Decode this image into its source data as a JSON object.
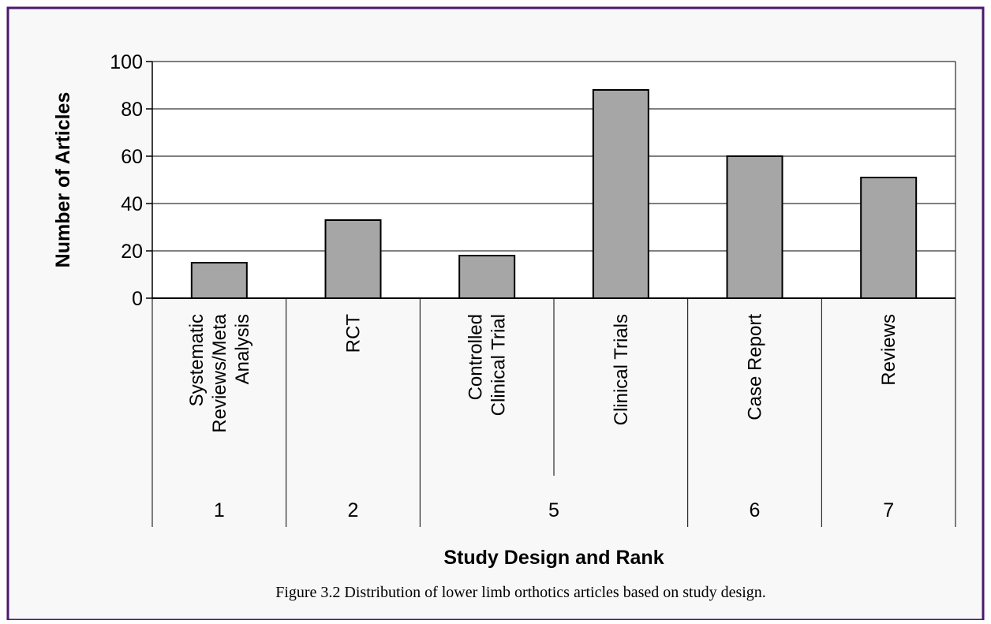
{
  "chart_data": {
    "type": "bar",
    "categories": [
      {
        "lines": [
          "Systematic",
          "Reviews/Meta",
          "Analysis"
        ],
        "rank": "1",
        "value": 15
      },
      {
        "lines": [
          "RCT"
        ],
        "rank": "2",
        "value": 33
      },
      {
        "lines": [
          "Controlled",
          "Clinical Trial"
        ],
        "rank": "5",
        "value": 18
      },
      {
        "lines": [
          "Clinical Trials"
        ],
        "rank": "5",
        "value": 88
      },
      {
        "lines": [
          "Case Report"
        ],
        "rank": "6",
        "value": 60
      },
      {
        "lines": [
          "Reviews"
        ],
        "rank": "7",
        "value": 51
      }
    ],
    "rank_groups": [
      {
        "label": "1",
        "from": 0,
        "to": 0
      },
      {
        "label": "2",
        "from": 1,
        "to": 1
      },
      {
        "label": "5",
        "from": 2,
        "to": 3
      },
      {
        "label": "6",
        "from": 4,
        "to": 4
      },
      {
        "label": "7",
        "from": 5,
        "to": 5
      }
    ],
    "ylim": [
      0,
      100
    ],
    "yticks": [
      0,
      20,
      40,
      60,
      80,
      100
    ],
    "ylabel": "Number of Articles",
    "xlabel": "Study Design and Rank",
    "grid": true,
    "legend": "none",
    "bar_color": "#a6a6a6"
  },
  "caption": "Figure 3.2  Distribution of lower limb orthotics articles based on study design.",
  "frame_color": "#4a1a6b"
}
